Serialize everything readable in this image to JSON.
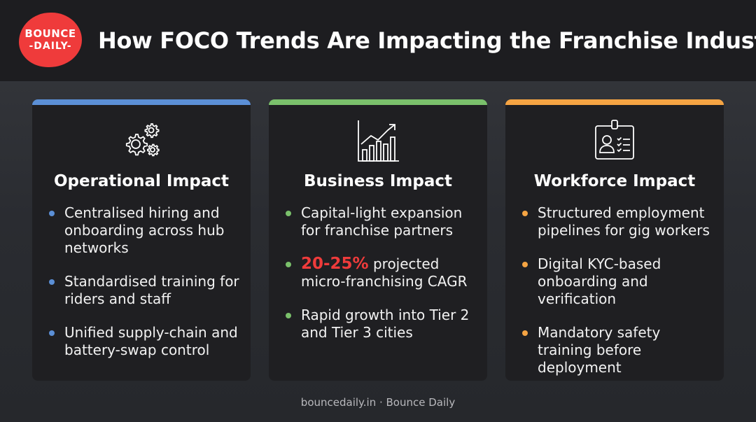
{
  "logo": {
    "line1": "BOUNCE",
    "line2": "-DAILY-"
  },
  "title": "How FOCO Trends Are Impacting the Franchise Industry",
  "cards": [
    {
      "heading": "Operational Impact",
      "icon": "gears-icon",
      "accent": "#5b8fd6",
      "items": [
        "Centralised hiring and onboarding across hub networks",
        "Standardised training for riders and staff",
        "Unified supply-chain and battery-swap control"
      ]
    },
    {
      "heading": "Business Impact",
      "icon": "bar-chart-growth-icon",
      "accent": "#7ac06b",
      "items": [
        "Capital-light expansion for franchise partners",
        {
          "highlight": "20-25%",
          "rest": " projected micro-franchising CAGR"
        },
        "Rapid growth into Tier 2 and Tier 3 cities"
      ]
    },
    {
      "heading": "Workforce Impact",
      "icon": "id-badge-icon",
      "accent": "#f5a443",
      "items": [
        "Structured employment pipelines for gig workers",
        "Digital KYC-based onboarding and verification",
        "Mandatory safety training before deployment"
      ]
    }
  ],
  "footer": "bouncedaily.in · Bounce Daily"
}
